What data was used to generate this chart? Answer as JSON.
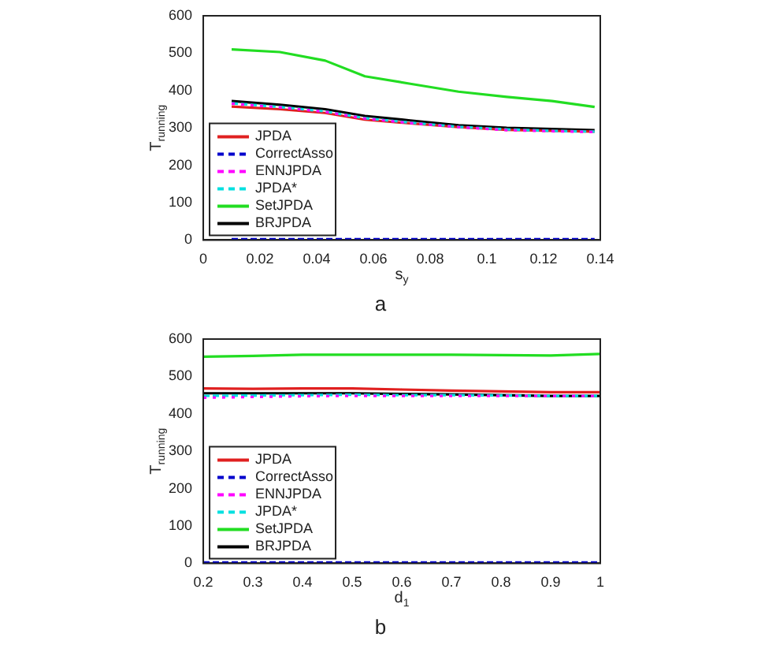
{
  "chart_data": [
    {
      "type": "line",
      "xlabel": "s$_{y}$",
      "ylabel": "T$_{running}$",
      "annotations": [
        "a"
      ],
      "x": [
        0.01,
        0.027,
        0.043,
        0.057,
        0.073,
        0.09,
        0.107,
        0.123,
        0.138
      ],
      "series": [
        {
          "name": "JPDA",
          "color": "#e02020",
          "line_style": "solid",
          "values": [
            357,
            350,
            340,
            322,
            312,
            302,
            295,
            292,
            290
          ]
        },
        {
          "name": "CorrectAsso",
          "color": "#0000cc",
          "line_style": "dashed",
          "values": [
            2,
            2,
            2,
            2,
            2,
            2,
            2,
            2,
            2
          ]
        },
        {
          "name": "ENNJPDA",
          "color": "#ff00ff",
          "line_style": "dashed",
          "values": [
            365,
            355,
            343,
            325,
            313,
            302,
            294,
            291,
            289
          ]
        },
        {
          "name": "JPDA*",
          "color": "#00e0e0",
          "line_style": "dashed",
          "values": [
            366,
            356,
            344,
            326,
            314,
            303,
            296,
            292,
            290
          ]
        },
        {
          "name": "SetJPDA",
          "color": "#22dd22",
          "line_style": "solid",
          "values": [
            510,
            503,
            480,
            438,
            418,
            397,
            383,
            372,
            356
          ]
        },
        {
          "name": "BRJPDA",
          "color": "#000000",
          "line_style": "solid",
          "values": [
            372,
            362,
            350,
            332,
            320,
            307,
            300,
            297,
            294
          ]
        }
      ],
      "xlim": [
        0,
        0.14
      ],
      "xticks": [
        0,
        0.02,
        0.04,
        0.06,
        0.08,
        0.1,
        0.12,
        0.14
      ],
      "ylim": [
        0,
        600
      ],
      "yticks": [
        0,
        100,
        200,
        300,
        400,
        500,
        600
      ],
      "grid": false,
      "legend": "bottom left",
      "marker": "none"
    },
    {
      "type": "line",
      "xlabel": "d$_{1}$",
      "ylabel": "T$_{running}$",
      "annotations": [
        "b"
      ],
      "x": [
        0.2,
        0.3,
        0.4,
        0.5,
        0.6,
        0.7,
        0.8,
        0.9,
        1
      ],
      "series": [
        {
          "name": "JPDA",
          "color": "#e02020",
          "line_style": "solid",
          "values": [
            468,
            467,
            468,
            468,
            465,
            462,
            460,
            458,
            458
          ]
        },
        {
          "name": "CorrectAsso",
          "color": "#0000cc",
          "line_style": "dashed",
          "values": [
            2,
            2,
            2,
            2,
            2,
            2,
            2,
            2,
            2
          ]
        },
        {
          "name": "ENNJPDA",
          "color": "#ff00ff",
          "line_style": "dashed",
          "values": [
            443,
            445,
            447,
            448,
            448,
            448,
            448,
            448,
            448
          ]
        },
        {
          "name": "JPDA*",
          "color": "#00e0e0",
          "line_style": "dashed",
          "values": [
            448,
            449,
            450,
            451,
            450,
            450,
            449,
            448,
            448
          ]
        },
        {
          "name": "SetJPDA",
          "color": "#22dd22",
          "line_style": "solid",
          "values": [
            553,
            555,
            558,
            558,
            558,
            558,
            557,
            556,
            560
          ]
        },
        {
          "name": "BRJPDA",
          "color": "#000000",
          "line_style": "solid",
          "values": [
            455,
            455,
            455,
            455,
            453,
            452,
            450,
            448,
            448
          ]
        }
      ],
      "xlim": [
        0.2,
        1
      ],
      "xticks": [
        0.2,
        0.3,
        0.4,
        0.5,
        0.6,
        0.7,
        0.8,
        0.9,
        1
      ],
      "ylim": [
        0,
        600
      ],
      "yticks": [
        0,
        100,
        200,
        300,
        400,
        500,
        600
      ],
      "grid": false,
      "legend": "bottom left",
      "marker": "none"
    }
  ]
}
